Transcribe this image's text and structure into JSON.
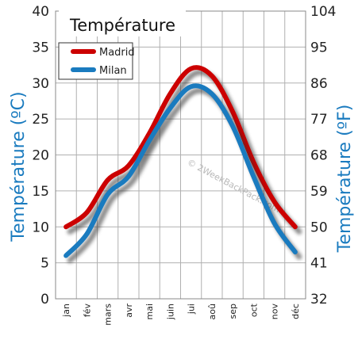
{
  "chart_data": {
    "type": "line",
    "title": "Température",
    "categories": [
      "jan",
      "fév",
      "mars",
      "avr",
      "mai",
      "juin",
      "jui",
      "aoû",
      "sep",
      "oct",
      "nov",
      "déc"
    ],
    "series": [
      {
        "name": "Madrid",
        "color": "#cc0000",
        "values": [
          10,
          12,
          16.5,
          18.5,
          23,
          28.5,
          32,
          31,
          26,
          19,
          13.5,
          10
        ]
      },
      {
        "name": "Milan",
        "color": "#1a7bbf",
        "values": [
          6,
          9,
          14.5,
          17,
          22,
          26.5,
          29.5,
          28.5,
          24,
          17,
          10.5,
          6.5
        ]
      }
    ],
    "ylabel_left": "Température  (ºC)",
    "ylabel_right": "Température  (ºF)",
    "ylim": [
      0,
      40
    ],
    "yticks_left": [
      "0",
      "5",
      "10",
      "15",
      "20",
      "25",
      "30",
      "35",
      "40"
    ],
    "yticks_right": [
      "32",
      "41",
      "50",
      "59",
      "68",
      "77",
      "86",
      "95",
      "104"
    ],
    "grid": true,
    "legend_position": "top-left"
  },
  "watermark": "© 2WeekBackPack.com",
  "colors": {
    "grid": "#b0b0b0",
    "axis_title": "#1a7bbf",
    "shadow": "#333333"
  }
}
